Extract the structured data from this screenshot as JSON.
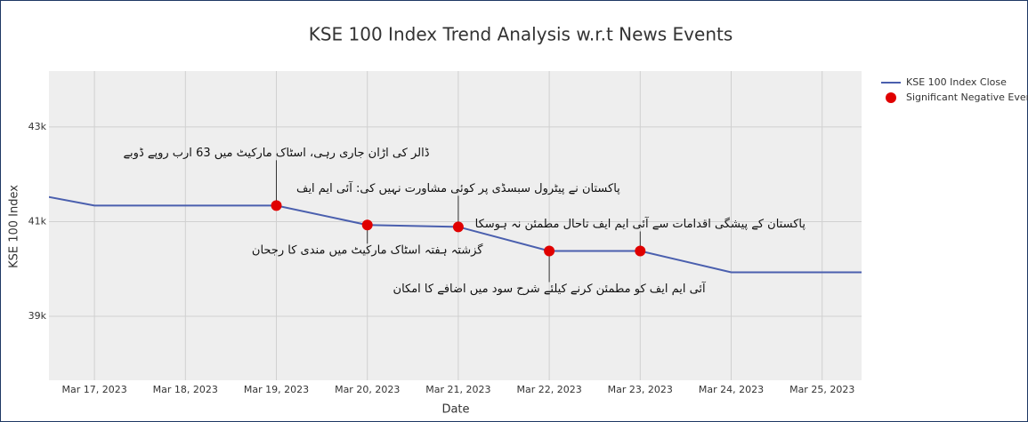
{
  "chart_data": {
    "type": "line",
    "title": "KSE 100 Index Trend Analysis w.r.t News Events",
    "x_label": "Date",
    "y_label": "KSE 100 Index",
    "x": [
      "2023-03-16",
      "2023-03-17",
      "2023-03-18",
      "2023-03-19",
      "2023-03-20",
      "2023-03-21",
      "2023-03-22",
      "2023-03-23",
      "2023-03-24",
      "2023-03-25",
      "2023-03-26"
    ],
    "series": [
      {
        "name": "KSE 100 Index Close",
        "color": "#4a5fae",
        "mode": "line",
        "x": [
          "2023-03-16",
          "2023-03-17",
          "2023-03-18",
          "2023-03-19",
          "2023-03-20",
          "2023-03-21",
          "2023-03-22",
          "2023-03-23",
          "2023-03-24",
          "2023-03-25",
          "2023-03-26"
        ],
        "values": [
          41700,
          41340,
          41340,
          41340,
          40930,
          40890,
          40380,
          40380,
          39930,
          39930,
          39930
        ]
      },
      {
        "name": "Significant Negative Events",
        "color": "#e00000",
        "mode": "markers",
        "x": [
          "2023-03-19",
          "2023-03-20",
          "2023-03-21",
          "2023-03-22",
          "2023-03-23"
        ],
        "values": [
          41340,
          40930,
          40890,
          40380,
          40380
        ]
      }
    ],
    "annotations": [
      {
        "x": "2023-03-19",
        "text": "ڈالر کی اڑان جاری رہی، اسٹاک مارکیٹ میں 63 ارب روپے ڈوبے"
      },
      {
        "x": "2023-03-20",
        "text": "گزشتہ ہفتہ اسٹاک مارکیٹ میں مندی کا رجحان"
      },
      {
        "x": "2023-03-21",
        "text": "پاکستان نے پیٹرول سبسڈی پر کوئی مشاورت نہیں کی: آئی ایم ایف"
      },
      {
        "x": "2023-03-22",
        "text": "آئی ایم ایف کو مطمئن کرنے کیلئے شرح سود میں اضافے کا امکان"
      },
      {
        "x": "2023-03-23",
        "text": "پاکستان کے پیشگی اقدامات سے آئی ایم ایف تاحال مطمئن نہ ہوسکا"
      }
    ],
    "xlim": [
      "2023-03-16 12:00",
      "2023-03-25 10:24"
    ],
    "xticks": [
      {
        "value": "2023-03-17",
        "label": "Mar 17, 2023"
      },
      {
        "value": "2023-03-18",
        "label": "Mar 18, 2023"
      },
      {
        "value": "2023-03-19",
        "label": "Mar 19, 2023"
      },
      {
        "value": "2023-03-20",
        "label": "Mar 20, 2023"
      },
      {
        "value": "2023-03-21",
        "label": "Mar 21, 2023"
      },
      {
        "value": "2023-03-22",
        "label": "Mar 22, 2023"
      },
      {
        "value": "2023-03-23",
        "label": "Mar 23, 2023"
      },
      {
        "value": "2023-03-24",
        "label": "Mar 24, 2023"
      },
      {
        "value": "2023-03-25",
        "label": "Mar 25, 2023"
      }
    ],
    "ylim": [
      37650,
      44180
    ],
    "yticks": [
      {
        "value": 39000,
        "label": "39k"
      },
      {
        "value": 41000,
        "label": "41k"
      },
      {
        "value": 43000,
        "label": "43k"
      }
    ],
    "grid": true,
    "legend": "right"
  }
}
